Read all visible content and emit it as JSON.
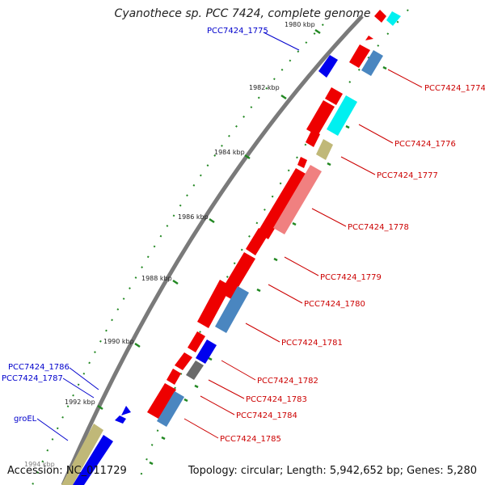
{
  "title": "Cyanothece sp. PCC 7424, complete genome",
  "footer": {
    "accession": "Accession: NC_011729",
    "summary": "Topology: circular; Length: 5,942,652 bp; Genes: 5,280"
  },
  "colors": {
    "backbone": "#808080",
    "ticks": "#228822",
    "red": "#ee0000",
    "cyan": "#00f0f0",
    "steelblue": "#4a86c0",
    "olive": "#c0b878",
    "pink": "#f08080",
    "gray": "#6a6a6a",
    "blue": "#0000ee",
    "label_red": "#cc0000",
    "label_blue": "#0000cc"
  },
  "scale_labels": [
    "1980 kbp",
    "1982 kbp",
    "1984 kbp",
    "1986 kbp",
    "1988 kbp",
    "1990 kbp",
    "1992 kbp",
    "1994 kbp"
  ],
  "gene_labels": {
    "right": [
      "PCC7424_1774",
      "PCC7424_1776",
      "PCC7424_1777",
      "PCC7424_1778",
      "PCC7424_1779",
      "PCC7424_1780",
      "PCC7424_1781",
      "PCC7424_1782",
      "PCC7424_1783",
      "PCC7424_1784",
      "PCC7424_1785"
    ],
    "left": [
      "PCC7424_1775",
      "PCC7424_1786",
      "PCC7424_1787",
      "groEL"
    ]
  }
}
